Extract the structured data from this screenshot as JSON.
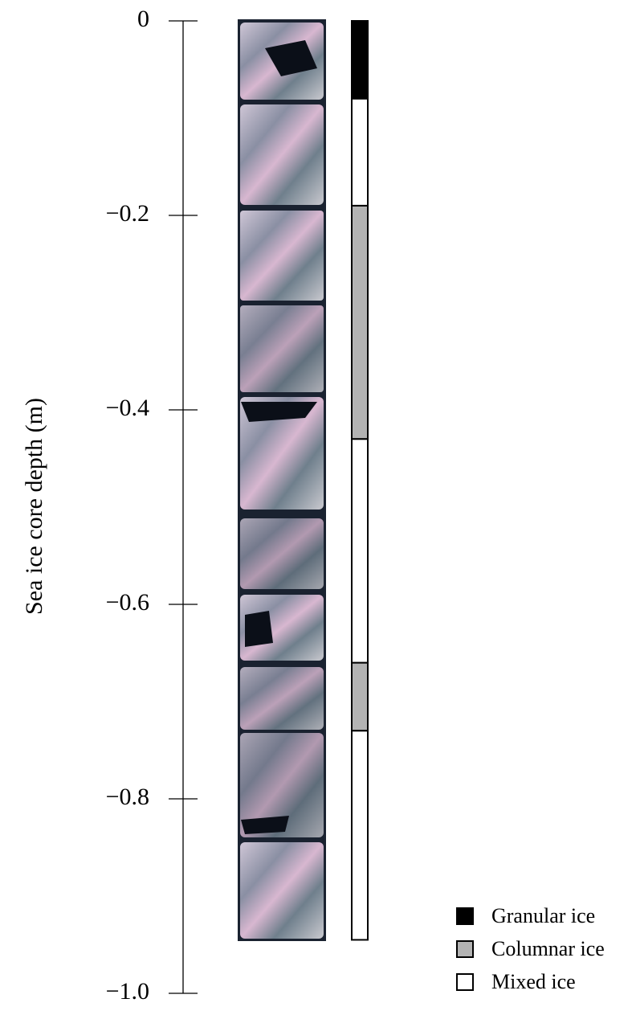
{
  "chart_data": {
    "type": "stratigraphy",
    "y_label": "Sea ice core depth (m)",
    "ylim": [
      0,
      -1.0
    ],
    "yticks": [
      0,
      {
        "value": -0.2,
        "label": "−0.2"
      },
      {
        "value": -0.4,
        "label": "−0.4"
      },
      {
        "value": -0.6,
        "label": "−0.6"
      },
      {
        "value": -0.8,
        "label": "−0.8"
      },
      {
        "value": -1.0,
        "label": "−1.0"
      }
    ],
    "series": [
      {
        "name": "Granular ice",
        "color": "#000000",
        "intervals": [
          [
            0,
            -0.08
          ]
        ]
      },
      {
        "name": "Columnar ice",
        "color": "#b3b3b3",
        "intervals": [
          [
            -0.19,
            -0.43
          ],
          [
            -0.66,
            -0.73
          ]
        ]
      },
      {
        "name": "Mixed ice",
        "color": "#ffffff",
        "intervals": [
          [
            -0.08,
            -0.19
          ],
          [
            -0.43,
            -0.66
          ],
          [
            -0.73,
            -0.945
          ]
        ]
      }
    ]
  }
}
